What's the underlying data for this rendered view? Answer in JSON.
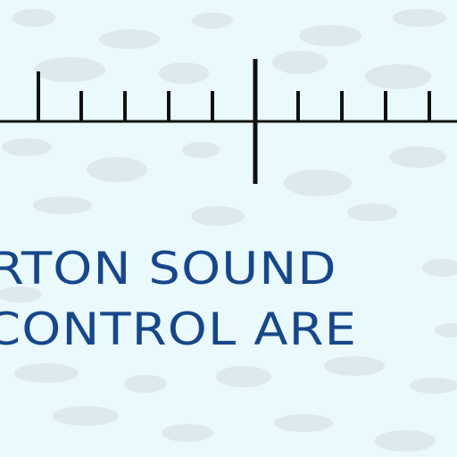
{
  "map": {
    "background_color": "#eaf9fc",
    "texture_color": "#dde9ec",
    "ink_color": "#111111",
    "label_color": "#17478a",
    "labels": {
      "line1": "RTON SOUND",
      "line2": "CONTROL ARE"
    }
  }
}
